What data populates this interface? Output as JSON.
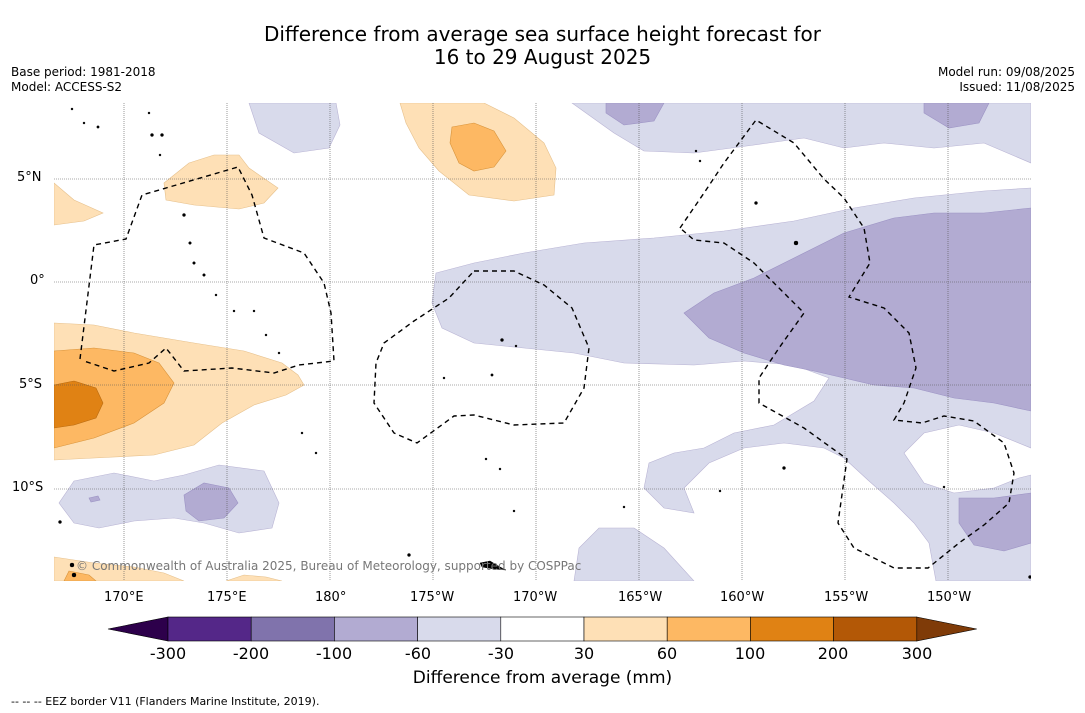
{
  "title": {
    "line1": "Difference from average sea surface height forecast for",
    "line2": "16 to 29 August 2025"
  },
  "meta": {
    "base_period": "Base period: 1981-2018",
    "model": "Model: ACCESS-S2",
    "model_run": "Model run: 09/08/2025",
    "issued": "Issued: 11/08/2025"
  },
  "map": {
    "lat_labels": [
      "5°N",
      "0°",
      "5°S",
      "10°S"
    ],
    "lon_labels": [
      "170°E",
      "175°E",
      "180°",
      "175°W",
      "170°W",
      "165°W",
      "160°W",
      "155°W",
      "150°W"
    ],
    "copyright": "© Commonwealth of Australia 2025, Bureau of Meteorology, supported by COSPPac"
  },
  "colorbar": {
    "labels": [
      "-300",
      "-200",
      "-100",
      "-60",
      "-30",
      "30",
      "60",
      "100",
      "200",
      "300"
    ],
    "colors": [
      "#2d004b",
      "#542788",
      "#8073ac",
      "#b2abd2",
      "#d8daeb",
      "#ffffff",
      "#fee0b6",
      "#fdb863",
      "#e08214",
      "#b35806",
      "#7f3b08"
    ],
    "title": "Difference from average (mm)"
  },
  "footer": "--  --  -- EEZ border V11 (Flanders Marine Institute, 2019)."
}
